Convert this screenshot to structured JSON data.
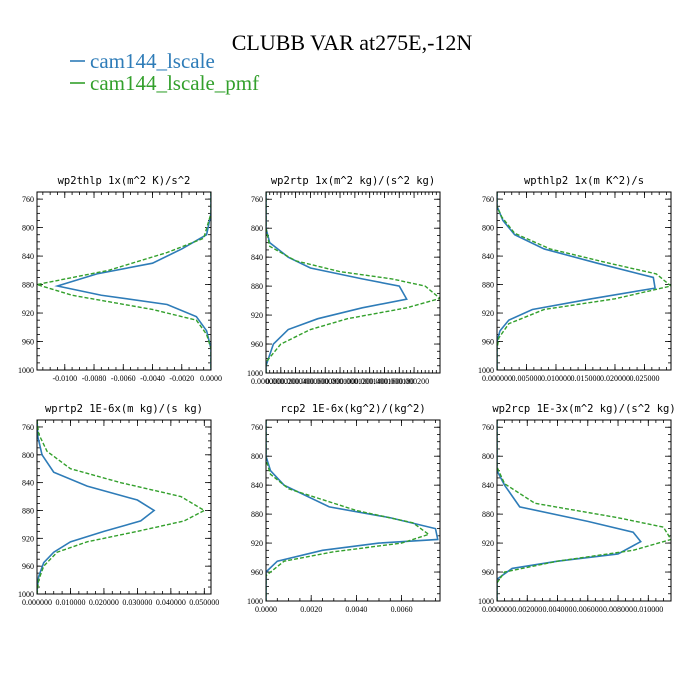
{
  "figure": {
    "title": "CLUBB VAR at275E,-12N",
    "legend": [
      {
        "label": "cam144_lscale",
        "color": "#2e7cb8",
        "style": "solid"
      },
      {
        "label": "cam144_lscale_pmf",
        "color": "#33a02c",
        "style": "dashed"
      }
    ]
  },
  "chart_data": [
    {
      "type": "line",
      "title": "wp2thlp   1x(m^2 K)/s^2",
      "ylim": [
        1000,
        750
      ],
      "yticks": [
        760,
        800,
        840,
        880,
        920,
        960,
        1000
      ],
      "xlim": [
        -0.0119,
        0.0
      ],
      "xticks": [
        -0.01,
        -0.008,
        -0.006,
        -0.004,
        -0.002,
        0.0
      ],
      "xtick_labels": [
        "-0.0100",
        "-0.0080",
        "-0.0060",
        "-0.0040",
        "-0.0020",
        "0.0000"
      ],
      "series": [
        {
          "name": "cam144_lscale",
          "color": "#2e7cb8",
          "style": "solid",
          "points": [
            [
              0,
              750
            ],
            [
              0,
              780
            ],
            [
              -0.0003,
              810
            ],
            [
              -0.002,
              830
            ],
            [
              -0.004,
              850
            ],
            [
              -0.0078,
              865
            ],
            [
              -0.0105,
              882
            ],
            [
              -0.0075,
              895
            ],
            [
              -0.003,
              908
            ],
            [
              -0.001,
              925
            ],
            [
              -0.0003,
              945
            ],
            [
              0,
              970
            ],
            [
              0,
              1000
            ]
          ]
        },
        {
          "name": "cam144_lscale_pmf",
          "color": "#33a02c",
          "style": "dashed",
          "points": [
            [
              0,
              750
            ],
            [
              0,
              780
            ],
            [
              -0.0005,
              815
            ],
            [
              -0.003,
              835
            ],
            [
              -0.007,
              860
            ],
            [
              -0.0119,
              880
            ],
            [
              -0.0095,
              895
            ],
            [
              -0.004,
              915
            ],
            [
              -0.001,
              930
            ],
            [
              -0.0003,
              950
            ],
            [
              0,
              970
            ],
            [
              0,
              1000
            ]
          ]
        }
      ]
    },
    {
      "type": "line",
      "title": "wp2rtp   1x(m^2 kg)/(s^2 kg)",
      "ylim": [
        1000,
        750
      ],
      "yticks": [
        760,
        800,
        840,
        880,
        920,
        960,
        1000
      ],
      "xlim": [
        0.0,
        0.000235
      ],
      "xticks": [
        0.0,
        2e-05,
        4e-05,
        6e-05,
        8e-05,
        0.0001,
        0.00012,
        0.00014,
        0.00016,
        0.00018,
        0.0002
      ],
      "xtick_labels": [
        "0.000000",
        "0.000020",
        "0.000040",
        "0.000060",
        "0.000080",
        "0.000100",
        "0.000120",
        "0.000140",
        "0.000160",
        "0.000180",
        "0.000200"
      ],
      "series": [
        {
          "name": "cam144_lscale",
          "color": "#2e7cb8",
          "style": "solid",
          "points": [
            [
              0,
              750
            ],
            [
              0,
              800
            ],
            [
              5e-06,
              820
            ],
            [
              3e-05,
              840
            ],
            [
              6e-05,
              855
            ],
            [
              0.00013,
              870
            ],
            [
              0.00018,
              880
            ],
            [
              0.00019,
              898
            ],
            [
              0.00013,
              910
            ],
            [
              7e-05,
              925
            ],
            [
              3e-05,
              940
            ],
            [
              1e-05,
              960
            ],
            [
              0,
              990
            ],
            [
              0,
              1000
            ]
          ]
        },
        {
          "name": "cam144_lscale_pmf",
          "color": "#33a02c",
          "style": "dashed",
          "points": [
            [
              0,
              750
            ],
            [
              0,
              800
            ],
            [
              5e-06,
              825
            ],
            [
              4e-05,
              845
            ],
            [
              0.0001,
              860
            ],
            [
              0.00017,
              870
            ],
            [
              0.000215,
              880
            ],
            [
              0.000235,
              897
            ],
            [
              0.00019,
              910
            ],
            [
              0.00011,
              925
            ],
            [
              6e-05,
              940
            ],
            [
              2e-05,
              960
            ],
            [
              0,
              985
            ],
            [
              0,
              1000
            ]
          ]
        }
      ]
    },
    {
      "type": "line",
      "title": "wpthlp2   1x(m K^2)/s",
      "ylim": [
        1000,
        750
      ],
      "yticks": [
        760,
        800,
        840,
        880,
        920,
        960,
        1000
      ],
      "xlim": [
        0.0,
        0.0295
      ],
      "xticks": [
        0.0,
        0.005,
        0.01,
        0.015,
        0.02,
        0.025
      ],
      "xtick_labels": [
        "0.000000",
        "0.005000",
        "0.010000",
        "0.015000",
        "0.020000",
        "0.025000"
      ],
      "series": [
        {
          "name": "cam144_lscale",
          "color": "#2e7cb8",
          "style": "solid",
          "points": [
            [
              0,
              750
            ],
            [
              0,
              770
            ],
            [
              0.001,
              790
            ],
            [
              0.003,
              810
            ],
            [
              0.008,
              830
            ],
            [
              0.017,
              850
            ],
            [
              0.0265,
              870
            ],
            [
              0.0268,
              885
            ],
            [
              0.016,
              900
            ],
            [
              0.006,
              915
            ],
            [
              0.002,
              930
            ],
            [
              0.0005,
              945
            ],
            [
              0,
              960
            ],
            [
              0,
              1000
            ]
          ]
        },
        {
          "name": "cam144_lscale_pmf",
          "color": "#33a02c",
          "style": "dashed",
          "points": [
            [
              0,
              750
            ],
            [
              0,
              770
            ],
            [
              0.0008,
              785
            ],
            [
              0.003,
              808
            ],
            [
              0.009,
              830
            ],
            [
              0.019,
              850
            ],
            [
              0.027,
              865
            ],
            [
              0.0295,
              882
            ],
            [
              0.02,
              900
            ],
            [
              0.008,
              915
            ],
            [
              0.002,
              935
            ],
            [
              0.0003,
              955
            ],
            [
              0,
              970
            ],
            [
              0,
              1000
            ]
          ]
        }
      ]
    },
    {
      "type": "line",
      "title": "wprtp2   1E-6x(m kg)/(s kg)",
      "ylim": [
        1000,
        750
      ],
      "yticks": [
        760,
        800,
        840,
        880,
        920,
        960,
        1000
      ],
      "xlim": [
        0.0,
        0.052
      ],
      "xticks": [
        0.0,
        0.01,
        0.02,
        0.03,
        0.04,
        0.05
      ],
      "xtick_labels": [
        "0.000000",
        "0.010000",
        "0.020000",
        "0.030000",
        "0.040000",
        "0.050000"
      ],
      "series": [
        {
          "name": "cam144_lscale",
          "color": "#2e7cb8",
          "style": "solid",
          "points": [
            [
              0,
              750
            ],
            [
              0.0003,
              775
            ],
            [
              0.0015,
              800
            ],
            [
              0.005,
              825
            ],
            [
              0.015,
              845
            ],
            [
              0.03,
              865
            ],
            [
              0.035,
              880
            ],
            [
              0.031,
              895
            ],
            [
              0.02,
              910
            ],
            [
              0.01,
              925
            ],
            [
              0.005,
              940
            ],
            [
              0.002,
              955
            ],
            [
              0.0005,
              975
            ],
            [
              0,
              995
            ],
            [
              0,
              1000
            ]
          ]
        },
        {
          "name": "cam144_lscale_pmf",
          "color": "#33a02c",
          "style": "dashed",
          "points": [
            [
              0,
              750
            ],
            [
              0.0005,
              770
            ],
            [
              0.003,
              795
            ],
            [
              0.01,
              820
            ],
            [
              0.025,
              840
            ],
            [
              0.043,
              860
            ],
            [
              0.05,
              880
            ],
            [
              0.044,
              895
            ],
            [
              0.03,
              910
            ],
            [
              0.015,
              925
            ],
            [
              0.006,
              940
            ],
            [
              0.002,
              960
            ],
            [
              0.0005,
              980
            ],
            [
              0,
              1000
            ]
          ]
        }
      ]
    },
    {
      "type": "line",
      "title": "rcp2   1E-6x(kg^2)/(kg^2)",
      "ylim": [
        1000,
        750
      ],
      "yticks": [
        760,
        800,
        840,
        880,
        920,
        960,
        1000
      ],
      "xlim": [
        0.0,
        0.0077
      ],
      "xticks": [
        0.0,
        0.002,
        0.004,
        0.006
      ],
      "xtick_labels": [
        "0.0000",
        "0.0020",
        "0.0040",
        "0.0060"
      ],
      "series": [
        {
          "name": "cam144_lscale",
          "color": "#2e7cb8",
          "style": "solid",
          "points": [
            [
              0,
              750
            ],
            [
              0,
              800
            ],
            [
              0.0002,
              820
            ],
            [
              0.0008,
              840
            ],
            [
              0.0028,
              870
            ],
            [
              0.0055,
              885
            ],
            [
              0.0075,
              900
            ],
            [
              0.0076,
              915
            ],
            [
              0.005,
              920
            ],
            [
              0.0025,
              930
            ],
            [
              0.0005,
              945
            ],
            [
              0,
              960
            ],
            [
              0,
              1000
            ]
          ]
        },
        {
          "name": "cam144_lscale_pmf",
          "color": "#33a02c",
          "style": "dashed",
          "points": [
            [
              0,
              750
            ],
            [
              0,
              805
            ],
            [
              0.0002,
              825
            ],
            [
              0.001,
              845
            ],
            [
              0.004,
              875
            ],
            [
              0.0065,
              892
            ],
            [
              0.0072,
              908
            ],
            [
              0.006,
              920
            ],
            [
              0.003,
              932
            ],
            [
              0.0008,
              945
            ],
            [
              0,
              965
            ],
            [
              0,
              1000
            ]
          ]
        }
      ]
    },
    {
      "type": "line",
      "title": "wp2rcp   1E-3x(m^2 kg)/(s^2 kg)",
      "ylim": [
        1000,
        750
      ],
      "yticks": [
        760,
        800,
        840,
        880,
        920,
        960,
        1000
      ],
      "xlim": [
        0.0,
        0.0115
      ],
      "xticks": [
        0.0,
        0.002,
        0.004,
        0.006,
        0.008,
        0.01
      ],
      "xtick_labels": [
        "0.000000",
        "0.002000",
        "0.004000",
        "0.006000",
        "0.008000",
        "0.010000"
      ],
      "series": [
        {
          "name": "cam144_lscale",
          "color": "#2e7cb8",
          "style": "solid",
          "points": [
            [
              0,
              750
            ],
            [
              0,
              820
            ],
            [
              0.0005,
              840
            ],
            [
              0.0015,
              870
            ],
            [
              0.006,
              890
            ],
            [
              0.009,
              905
            ],
            [
              0.0095,
              918
            ],
            [
              0.008,
              935
            ],
            [
              0.004,
              945
            ],
            [
              0.001,
              955
            ],
            [
              0,
              970
            ],
            [
              0,
              1000
            ]
          ]
        },
        {
          "name": "cam144_lscale_pmf",
          "color": "#33a02c",
          "style": "dashed",
          "points": [
            [
              0,
              750
            ],
            [
              0,
              815
            ],
            [
              0.0005,
              838
            ],
            [
              0.0025,
              865
            ],
            [
              0.008,
              885
            ],
            [
              0.011,
              898
            ],
            [
              0.0115,
              915
            ],
            [
              0.009,
              930
            ],
            [
              0.004,
              945
            ],
            [
              0.0005,
              960
            ],
            [
              0,
              975
            ],
            [
              0,
              1000
            ]
          ]
        }
      ]
    }
  ]
}
